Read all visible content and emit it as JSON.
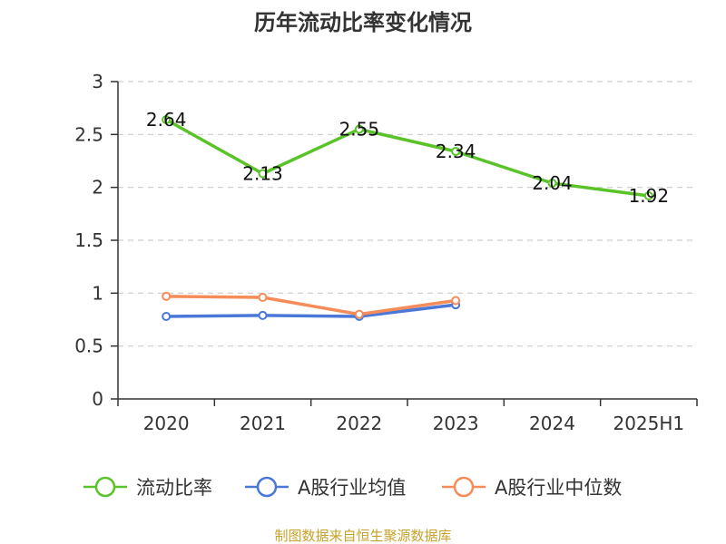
{
  "chart_data": {
    "type": "line",
    "title": "历年流动比率变化情况",
    "categories": [
      "2020",
      "2021",
      "2022",
      "2023",
      "2024",
      "2025H1"
    ],
    "ylim": [
      0,
      3
    ],
    "yticks": [
      "0",
      "0.5",
      "1",
      "1.5",
      "2",
      "2.5",
      "3"
    ],
    "grid": true,
    "legend_position": "bottom",
    "series": [
      {
        "name": "流动比率",
        "color": "#5ac32a",
        "values": [
          2.64,
          2.13,
          2.55,
          2.34,
          2.04,
          1.92
        ],
        "labels": [
          "2.64",
          "2.13",
          "2.55",
          "2.34",
          "2.04",
          "1.92"
        ]
      },
      {
        "name": "A股行业均值",
        "color": "#4a78d8",
        "values": [
          0.78,
          0.79,
          0.78,
          0.89,
          null,
          null
        ]
      },
      {
        "name": "A股行业中位数",
        "color": "#f58c5a",
        "values": [
          0.97,
          0.96,
          0.8,
          0.93,
          null,
          null
        ]
      }
    ],
    "source": "制图数据来自恒生聚源数据库"
  }
}
